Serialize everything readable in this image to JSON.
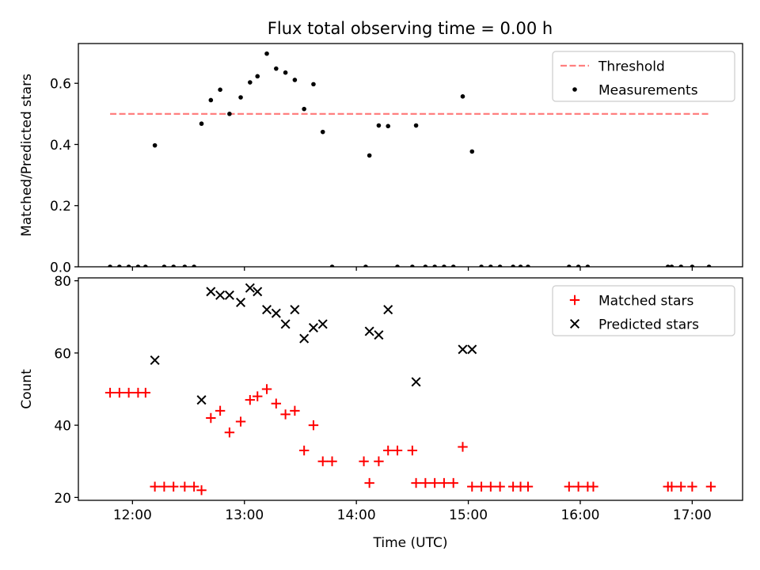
{
  "title": "Flux total observing time = 0.00 h",
  "chart_data": [
    {
      "type": "scatter",
      "panel": "top",
      "title": "Flux total observing time = 0.00 h",
      "ylabel": "Matched/Predicted stars",
      "xlabel": "",
      "xlim": [
        "11:31",
        "17:27"
      ],
      "ylim": [
        0,
        0.73
      ],
      "yticks": [
        0.0,
        0.2,
        0.4,
        0.6
      ],
      "ytick_labels": [
        "0.0",
        "0.2",
        "0.4",
        "0.6"
      ],
      "xticks": [
        "12:00",
        "13:00",
        "14:00",
        "15:00",
        "16:00",
        "17:00"
      ],
      "show_xtick_labels": false,
      "grid": false,
      "legend_position": "top-right",
      "legend": [
        "Threshold",
        "Measurements"
      ],
      "threshold": {
        "name": "Threshold",
        "value": 0.5,
        "x": [
          "11:48",
          "17:10"
        ],
        "color": "#ff7f7f",
        "style": "dashed"
      },
      "series": [
        {
          "name": "Measurements",
          "color": "#000000",
          "marker": "dot",
          "points": [
            [
              "11:48",
              0
            ],
            [
              "11:53",
              0
            ],
            [
              "11:58",
              0
            ],
            [
              "12:03",
              0
            ],
            [
              "12:07",
              0
            ],
            [
              "12:12",
              0.397
            ],
            [
              "12:17",
              0
            ],
            [
              "12:22",
              0
            ],
            [
              "12:28",
              0
            ],
            [
              "12:33",
              0
            ],
            [
              "12:37",
              0.468
            ],
            [
              "12:42",
              0.545
            ],
            [
              "12:47",
              0.579
            ],
            [
              "12:52",
              0.5
            ],
            [
              "12:58",
              0.554
            ],
            [
              "13:03",
              0.603
            ],
            [
              "13:07",
              0.623
            ],
            [
              "13:12",
              0.697
            ],
            [
              "13:17",
              0.648
            ],
            [
              "13:22",
              0.635
            ],
            [
              "13:27",
              0.611
            ],
            [
              "13:32",
              0.516
            ],
            [
              "13:37",
              0.597
            ],
            [
              "13:42",
              0.441
            ],
            [
              "13:47",
              0
            ],
            [
              "14:05",
              0
            ],
            [
              "14:07",
              0.364
            ],
            [
              "14:12",
              0.462
            ],
            [
              "14:17",
              0.46
            ],
            [
              "14:22",
              0
            ],
            [
              "14:30",
              0
            ],
            [
              "14:32",
              0.462
            ],
            [
              "14:37",
              0
            ],
            [
              "14:42",
              0
            ],
            [
              "14:47",
              0
            ],
            [
              "14:52",
              0
            ],
            [
              "14:57",
              0.557
            ],
            [
              "15:02",
              0.377
            ],
            [
              "15:07",
              0
            ],
            [
              "15:12",
              0
            ],
            [
              "15:17",
              0
            ],
            [
              "15:24",
              0
            ],
            [
              "15:28",
              0
            ],
            [
              "15:32",
              0
            ],
            [
              "15:54",
              0
            ],
            [
              "15:59",
              0
            ],
            [
              "16:04",
              0
            ],
            [
              "16:47",
              0
            ],
            [
              "16:49",
              0
            ],
            [
              "16:54",
              0
            ],
            [
              "17:00",
              0
            ],
            [
              "17:09",
              0
            ]
          ]
        }
      ]
    },
    {
      "type": "scatter",
      "panel": "bottom",
      "title": "",
      "ylabel": "Count",
      "xlabel": "Time (UTC)",
      "xlim": [
        "11:31",
        "17:27"
      ],
      "ylim": [
        19.2,
        80.8
      ],
      "yticks": [
        20,
        40,
        60,
        80
      ],
      "ytick_labels": [
        "20",
        "40",
        "60",
        "80"
      ],
      "xticks": [
        "12:00",
        "13:00",
        "14:00",
        "15:00",
        "16:00",
        "17:00"
      ],
      "xtick_labels": [
        "12:00",
        "13:00",
        "14:00",
        "15:00",
        "16:00",
        "17:00"
      ],
      "grid": false,
      "legend_position": "top-right",
      "legend": [
        "Matched stars",
        "Predicted stars"
      ],
      "series": [
        {
          "name": "Matched stars",
          "color": "#ff0000",
          "marker": "plus",
          "points": [
            [
              "11:48",
              49
            ],
            [
              "11:53",
              49
            ],
            [
              "11:58",
              49
            ],
            [
              "12:03",
              49
            ],
            [
              "12:07",
              49
            ],
            [
              "12:12",
              23
            ],
            [
              "12:17",
              23
            ],
            [
              "12:22",
              23
            ],
            [
              "12:28",
              23
            ],
            [
              "12:33",
              23
            ],
            [
              "12:37",
              22
            ],
            [
              "12:42",
              42
            ],
            [
              "12:47",
              44
            ],
            [
              "12:52",
              38
            ],
            [
              "12:58",
              41
            ],
            [
              "13:03",
              47
            ],
            [
              "13:07",
              48
            ],
            [
              "13:12",
              50
            ],
            [
              "13:17",
              46
            ],
            [
              "13:22",
              43
            ],
            [
              "13:27",
              44
            ],
            [
              "13:32",
              33
            ],
            [
              "13:37",
              40
            ],
            [
              "13:42",
              30
            ],
            [
              "13:47",
              30
            ],
            [
              "14:04",
              30
            ],
            [
              "14:07",
              24
            ],
            [
              "14:12",
              30
            ],
            [
              "14:17",
              33
            ],
            [
              "14:22",
              33
            ],
            [
              "14:30",
              33
            ],
            [
              "14:32",
              24
            ],
            [
              "14:37",
              24
            ],
            [
              "14:42",
              24
            ],
            [
              "14:47",
              24
            ],
            [
              "14:52",
              24
            ],
            [
              "14:57",
              34
            ],
            [
              "15:02",
              23
            ],
            [
              "15:07",
              23
            ],
            [
              "15:12",
              23
            ],
            [
              "15:17",
              23
            ],
            [
              "15:24",
              23
            ],
            [
              "15:28",
              23
            ],
            [
              "15:32",
              23
            ],
            [
              "15:54",
              23
            ],
            [
              "15:59",
              23
            ],
            [
              "16:04",
              23
            ],
            [
              "16:07",
              23
            ],
            [
              "16:47",
              23
            ],
            [
              "16:49",
              23
            ],
            [
              "16:54",
              23
            ],
            [
              "17:00",
              23
            ],
            [
              "17:10",
              23
            ]
          ]
        },
        {
          "name": "Predicted stars",
          "color": "#000000",
          "marker": "x",
          "points": [
            [
              "12:12",
              58
            ],
            [
              "12:37",
              47
            ],
            [
              "12:42",
              77
            ],
            [
              "12:47",
              76
            ],
            [
              "12:52",
              76
            ],
            [
              "12:58",
              74
            ],
            [
              "13:03",
              78
            ],
            [
              "13:07",
              77
            ],
            [
              "13:12",
              72
            ],
            [
              "13:17",
              71
            ],
            [
              "13:22",
              68
            ],
            [
              "13:27",
              72
            ],
            [
              "13:32",
              64
            ],
            [
              "13:37",
              67
            ],
            [
              "13:42",
              68
            ],
            [
              "14:07",
              66
            ],
            [
              "14:12",
              65
            ],
            [
              "14:17",
              72
            ],
            [
              "14:32",
              52
            ],
            [
              "14:57",
              61
            ],
            [
              "15:02",
              61
            ]
          ]
        }
      ]
    }
  ]
}
